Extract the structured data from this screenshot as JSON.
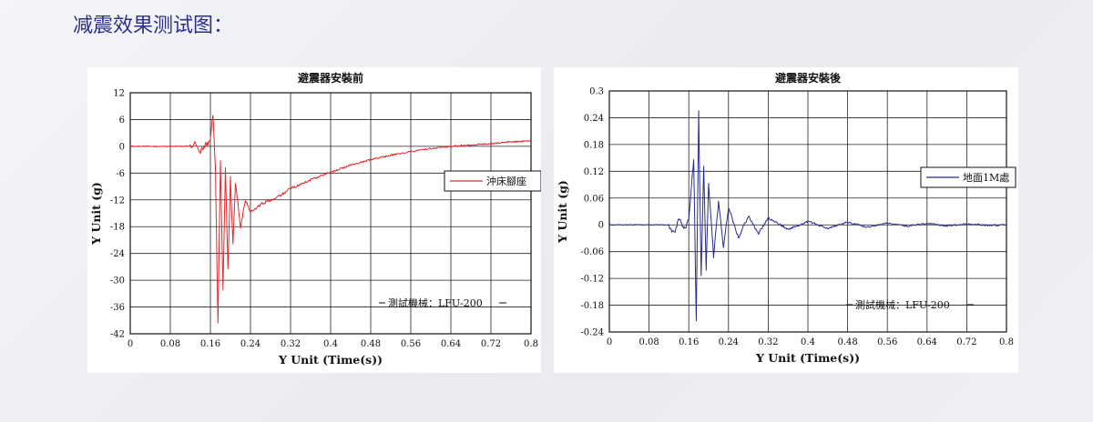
{
  "page": {
    "title": "减震效果测试图："
  },
  "chart_data": [
    {
      "type": "line",
      "title": "避震器安裝前",
      "xlabel": "Y Unit (Time(s))",
      "ylabel": "Y Unit (g)",
      "xlim": [
        0,
        0.8
      ],
      "ylim": [
        -42,
        12
      ],
      "xticks": [
        "0",
        "0.08",
        "0.16",
        "0.24",
        "0.32",
        "0.4",
        "0.48",
        "0.56",
        "0.64",
        "0.72",
        "0.8"
      ],
      "yticks": [
        "12",
        "6",
        "0",
        "-6",
        "-12",
        "-18",
        "-24",
        "-30",
        "-36",
        "-42"
      ],
      "grid": true,
      "legend_position": "right",
      "annotation": "測試機械：LFU-200",
      "series": [
        {
          "name": "沖床腳座",
          "color": "#e8262b",
          "x": [
            0,
            0.12,
            0.13,
            0.14,
            0.15,
            0.16,
            0.165,
            0.17,
            0.175,
            0.18,
            0.185,
            0.19,
            0.195,
            0.2,
            0.205,
            0.21,
            0.22,
            0.23,
            0.24,
            0.26,
            0.28,
            0.3,
            0.32,
            0.36,
            0.4,
            0.44,
            0.48,
            0.52,
            0.56,
            0.6,
            0.64,
            0.68,
            0.72,
            0.76,
            0.8
          ],
          "y": [
            0,
            0,
            1,
            -1,
            0.5,
            1,
            7,
            -5,
            -39,
            -3,
            -32,
            -5,
            -28,
            -7,
            -22,
            -8,
            -18,
            -12,
            -15,
            -13,
            -12,
            -11,
            -9.5,
            -7.5,
            -5.8,
            -4.2,
            -3,
            -2,
            -1.2,
            -0.5,
            0,
            0.3,
            0.6,
            1,
            1.2
          ]
        }
      ]
    },
    {
      "type": "line",
      "title": "避震器安裝後",
      "xlabel": "Y Unit (Time(s))",
      "ylabel": "Y Unit (g)",
      "xlim": [
        0,
        0.8
      ],
      "ylim": [
        -0.24,
        0.3
      ],
      "xticks": [
        "0",
        "0.08",
        "0.16",
        "0.24",
        "0.32",
        "0.4",
        "0.48",
        "0.56",
        "0.64",
        "0.72",
        "0.8"
      ],
      "yticks": [
        "0.3",
        "0.24",
        "0.18",
        "0.12",
        "0.06",
        "0",
        "-0.06",
        "-0.12",
        "-0.18",
        "-0.24"
      ],
      "grid": true,
      "legend_position": "right",
      "annotation": "測試機械：LFU-200",
      "series": [
        {
          "name": "地面1M處",
          "color": "#2a2b8e",
          "x": [
            0,
            0.12,
            0.13,
            0.14,
            0.15,
            0.16,
            0.17,
            0.175,
            0.18,
            0.185,
            0.19,
            0.195,
            0.2,
            0.21,
            0.22,
            0.23,
            0.24,
            0.26,
            0.28,
            0.3,
            0.32,
            0.36,
            0.4,
            0.44,
            0.48,
            0.52,
            0.56,
            0.6,
            0.64,
            0.68,
            0.72,
            0.76,
            0.8
          ],
          "y": [
            0,
            0,
            -0.02,
            0.015,
            -0.01,
            0.01,
            0.15,
            -0.22,
            0.25,
            -0.12,
            0.13,
            -0.1,
            0.09,
            -0.07,
            0.05,
            -0.05,
            0.04,
            -0.03,
            0.02,
            -0.02,
            0.015,
            -0.01,
            0.008,
            -0.008,
            0.006,
            -0.005,
            0.004,
            -0.003,
            0.003,
            -0.002,
            0.002,
            -0.001,
            0
          ]
        }
      ]
    }
  ]
}
